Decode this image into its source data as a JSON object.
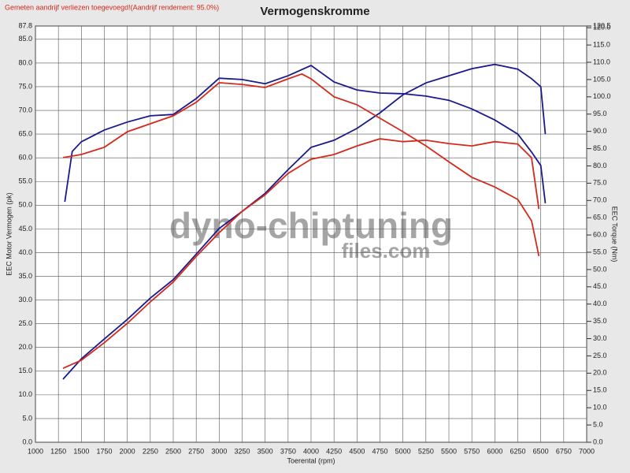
{
  "chart_data": {
    "type": "line",
    "title": "Vermogenskromme",
    "note": "Gemeten aandrijf verliezen toegevoegd!(Aandrijf rendement: 95.0%)",
    "watermark": [
      "dyno-chiptuning",
      "files.com"
    ],
    "xlabel": "Toerental (rpm)",
    "ylabel": "EEC Motor Vermogen (pk)",
    "y2label": "EEC Torque (Nm)",
    "xlim": [
      1000,
      7000
    ],
    "xticks": [
      1000,
      1250,
      1500,
      1750,
      2000,
      2250,
      2500,
      2750,
      3000,
      3250,
      3500,
      3750,
      4000,
      4250,
      4500,
      4750,
      5000,
      5250,
      5500,
      5750,
      6000,
      6250,
      6500,
      6750,
      7000
    ],
    "ylim": [
      0,
      87.8
    ],
    "yticks": [
      {
        "value": 0,
        "label": "0.0"
      },
      {
        "value": 5,
        "label": "5.0"
      },
      {
        "value": 10,
        "label": "10.0"
      },
      {
        "value": 15,
        "label": "15.0"
      },
      {
        "value": 20,
        "label": "20.0"
      },
      {
        "value": 25,
        "label": "25.0"
      },
      {
        "value": 30,
        "label": "30.0"
      },
      {
        "value": 35,
        "label": "35.0"
      },
      {
        "value": 40,
        "label": "40.0"
      },
      {
        "value": 45,
        "label": "45.0"
      },
      {
        "value": 50,
        "label": "50.0"
      },
      {
        "value": 55,
        "label": "55.0"
      },
      {
        "value": 60,
        "label": "60.0"
      },
      {
        "value": 65,
        "label": "65.0"
      },
      {
        "value": 70,
        "label": "70.0"
      },
      {
        "value": 75,
        "label": "75.0"
      },
      {
        "value": 80,
        "label": "80.0"
      },
      {
        "value": 85,
        "label": "85.0"
      },
      87.8
    ],
    "y2lim": [
      0,
      120.5
    ],
    "y2ticks": [
      {
        "value": 0,
        "label": "0.0"
      },
      {
        "value": 5,
        "label": "5.0"
      },
      {
        "value": 10,
        "label": "10.0"
      },
      {
        "value": 15,
        "label": "15.0"
      },
      {
        "value": 20,
        "label": "20.0"
      },
      {
        "value": 25,
        "label": "25.0"
      },
      {
        "value": 30,
        "label": "30.0"
      },
      {
        "value": 35,
        "label": "35.0"
      },
      {
        "value": 40,
        "label": "40.0"
      },
      {
        "value": 45,
        "label": "45.0"
      },
      {
        "value": 50,
        "label": "50.0"
      },
      {
        "value": 55,
        "label": "55.0"
      },
      {
        "value": 60,
        "label": "60.0"
      },
      {
        "value": 65,
        "label": "65.0"
      },
      {
        "value": 70,
        "label": "70.0"
      },
      {
        "value": 75,
        "label": "75.0"
      },
      {
        "value": 80,
        "label": "80.0"
      },
      {
        "value": 85,
        "label": "85.0"
      },
      {
        "value": 90,
        "label": "90.0"
      },
      {
        "value": 95,
        "label": "95.0"
      },
      {
        "value": 100,
        "label": "100.0"
      },
      {
        "value": 105,
        "label": "105.0"
      },
      {
        "value": 110,
        "label": "110.0"
      },
      {
        "value": 115,
        "label": "115.0"
      },
      {
        "value": 120,
        "label": "120.0"
      },
      120.5
    ],
    "grid": true,
    "series": [
      {
        "color": "#1a1a8c",
        "x": [
          1300,
          1500,
          1750,
          2000,
          2250,
          2500,
          2750,
          3000,
          3250,
          3500,
          3750,
          4000,
          4250,
          4500,
          4750,
          5000,
          5250,
          5500,
          5750,
          6000,
          6250,
          6400,
          6500,
          6550
        ],
        "values": [
          13.3,
          17.6,
          21.8,
          25.9,
          30.4,
          34.3,
          39.7,
          45.1,
          48.7,
          52.5,
          57.5,
          62.2,
          63.7,
          66.2,
          69.5,
          73.3,
          75.8,
          77.3,
          78.8,
          79.7,
          78.7,
          76.7,
          75.0,
          65.0
        ]
      },
      {
        "color": "#d42a1e",
        "x": [
          1300,
          1500,
          1750,
          2000,
          2250,
          2500,
          2750,
          3000,
          3250,
          3500,
          3750,
          4000,
          4250,
          4500,
          4750,
          5000,
          5250,
          5500,
          5750,
          6000,
          6250,
          6400,
          6480
        ],
        "values": [
          15.6,
          17.3,
          21.0,
          25.1,
          29.6,
          33.8,
          39.2,
          44.2,
          48.7,
          52.2,
          56.7,
          59.7,
          60.7,
          62.5,
          64.0,
          63.4,
          63.7,
          63.0,
          62.5,
          63.4,
          62.9,
          60.0,
          49.2
        ]
      },
      {
        "color": "#1a1a8c",
        "axis": "y2",
        "x": [
          1320,
          1400,
          1500,
          1750,
          2000,
          2250,
          2500,
          2750,
          3000,
          3250,
          3500,
          3750,
          4000,
          4250,
          4500,
          4750,
          5000,
          5250,
          5500,
          5750,
          6000,
          6250,
          6400,
          6500,
          6550
        ],
        "values": [
          69.6,
          84.2,
          87.0,
          90.4,
          92.7,
          94.5,
          94.9,
          99.5,
          105.4,
          105.0,
          103.8,
          106.1,
          109.1,
          104.3,
          102.0,
          101.1,
          100.9,
          100.2,
          99.0,
          96.5,
          93.3,
          89.2,
          84.0,
          80.1,
          69.2
        ]
      },
      {
        "color": "#d42a1e",
        "axis": "y2",
        "x": [
          1300,
          1500,
          1750,
          2000,
          2250,
          2500,
          2750,
          3000,
          3250,
          3500,
          3750,
          3900,
          4000,
          4250,
          4500,
          4750,
          5000,
          5250,
          5500,
          5750,
          6000,
          6250,
          6400,
          6480
        ],
        "values": [
          82.4,
          83.3,
          85.4,
          89.9,
          92.2,
          94.5,
          98.4,
          104.1,
          103.6,
          102.7,
          105.2,
          106.6,
          105.2,
          100.0,
          97.7,
          93.8,
          89.9,
          85.8,
          81.2,
          76.7,
          73.9,
          70.3,
          64.1,
          53.9
        ]
      }
    ]
  }
}
